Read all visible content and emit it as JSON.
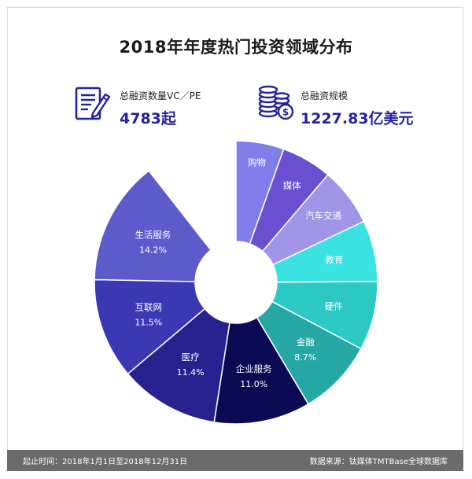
{
  "title": "2018年年度热门投资领域分布",
  "stats": {
    "deals": {
      "label": "总融资数量VC／PE",
      "value": "4783起",
      "icon": "document-pen-icon"
    },
    "amount": {
      "label": "总融资规模",
      "value": "1227.83亿美元",
      "icon": "coin-stack-icon"
    }
  },
  "chart_data": {
    "type": "pie",
    "title": "",
    "donut": true,
    "slices": [
      {
        "label": "购物",
        "value": null,
        "percent_label": "",
        "color": "#7f7eea"
      },
      {
        "label": "媒体",
        "value": null,
        "percent_label": "",
        "color": "#6a4fd1"
      },
      {
        "label": "汽车交通",
        "value": null,
        "percent_label": "",
        "color": "#a095e8"
      },
      {
        "label": "教育",
        "value": null,
        "percent_label": "",
        "color": "#3ae2e1"
      },
      {
        "label": "硬件",
        "value": null,
        "percent_label": "",
        "color": "#2cc9c4"
      },
      {
        "label": "金融",
        "value": 8.7,
        "percent_label": "8.7%",
        "color": "#25a8a3"
      },
      {
        "label": "企业服务",
        "value": 11.0,
        "percent_label": "11.0%",
        "color": "#0c0955"
      },
      {
        "label": "医疗",
        "value": 11.4,
        "percent_label": "11.4%",
        "color": "#272190"
      },
      {
        "label": "互联网",
        "value": 11.5,
        "percent_label": "11.5%",
        "color": "#3a38b3"
      },
      {
        "label": "生活服务",
        "value": 14.2,
        "percent_label": "14.2%",
        "color": "#5b5bcc"
      }
    ]
  },
  "footer": {
    "left": "起止时间：2018年1月1日至2018年12月31日",
    "right": "数据来源：钛媒体TMTBase全球数据库"
  }
}
